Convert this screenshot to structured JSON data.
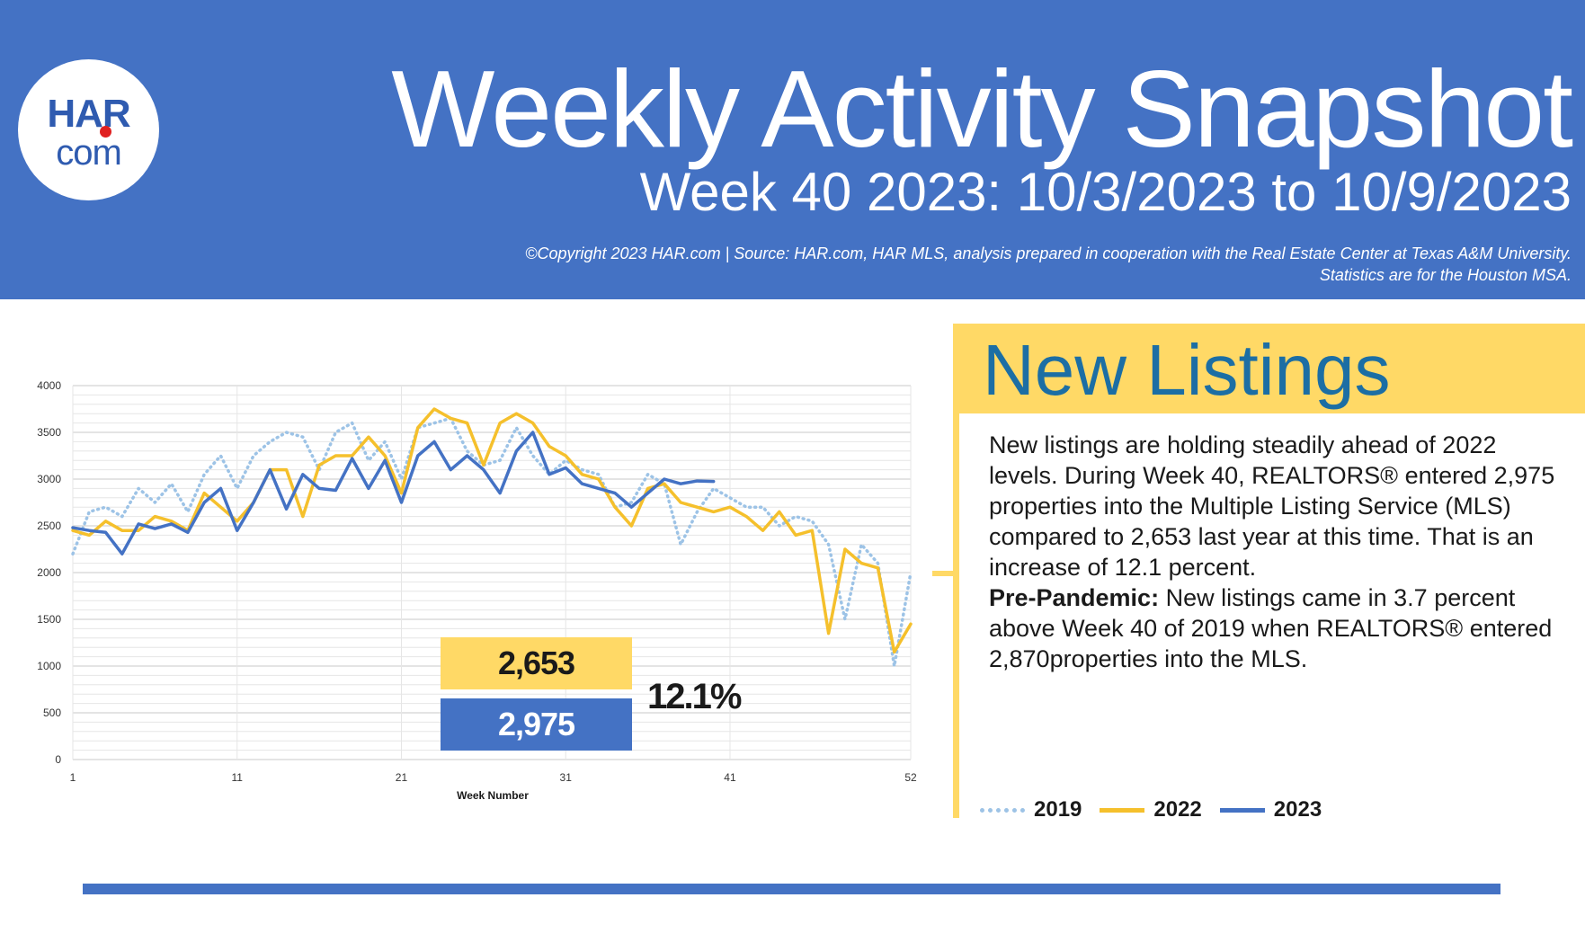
{
  "header": {
    "logo_top": "HAR",
    "logo_bottom": "com",
    "title": "Weekly Activity Snapshot",
    "subtitle": "Week 40 2023: 10/3/2023 to 10/9/2023",
    "source_line1": "©Copyright 2023 HAR.com  |  Source: HAR.com, HAR MLS, analysis prepared in cooperation with the Real Estate Center at Texas A&M University.",
    "source_line2": "Statistics are for the Houston MSA."
  },
  "panel": {
    "title": "New Listings",
    "paragraph1": "New listings are holding steadily ahead of 2022 levels. During Week 40, REALTORS® entered 2,975 properties into the Multiple Listing Service (MLS) compared to 2,653 last year at this time. That is an increase of 12.1 percent.",
    "paragraph2_label": "Pre-Pandemic:",
    "paragraph2_text": " New listings came in 3.7 percent above Week 40 of 2019 when REALTORS® entered 2,870properties into the MLS."
  },
  "callouts": {
    "value_2022": "2,653",
    "value_2023": "2,975",
    "percent": "12.1%"
  },
  "colors": {
    "header_blue": "#4472c4",
    "accent_yellow": "#ffd966",
    "title_teal": "#1c6ea4",
    "series_2019": "#9dc3e6",
    "series_2022": "#f5c02c",
    "series_2023": "#4472c4"
  },
  "chart_data": {
    "type": "line",
    "xlabel": "Week Number",
    "ylabel": "",
    "xlim": [
      1,
      52
    ],
    "ylim": [
      0,
      4000
    ],
    "x_ticks": [
      1,
      11,
      21,
      31,
      41,
      52
    ],
    "y_ticks": [
      0,
      500,
      1000,
      1500,
      2000,
      2500,
      3000,
      3500,
      4000
    ],
    "grid": true,
    "legend": "bottom",
    "series": [
      {
        "name": "2019",
        "style": "dotted",
        "x": [
          1,
          2,
          3,
          4,
          5,
          6,
          7,
          8,
          9,
          10,
          11,
          12,
          13,
          14,
          15,
          16,
          17,
          18,
          19,
          20,
          21,
          22,
          23,
          24,
          25,
          26,
          27,
          28,
          29,
          30,
          31,
          32,
          33,
          34,
          35,
          36,
          37,
          38,
          39,
          40,
          41,
          42,
          43,
          44,
          45,
          46,
          47,
          48,
          49,
          50,
          51,
          52
        ],
        "values": [
          2200,
          2650,
          2700,
          2600,
          2900,
          2750,
          2950,
          2650,
          3050,
          3250,
          2900,
          3250,
          3400,
          3500,
          3450,
          3100,
          3500,
          3600,
          3200,
          3400,
          3000,
          3550,
          3600,
          3650,
          3300,
          3150,
          3200,
          3550,
          3250,
          3050,
          3200,
          3100,
          3050,
          2700,
          2750,
          3050,
          2950,
          2300,
          2650,
          2900,
          2800,
          2700,
          2700,
          2500,
          2600,
          2550,
          2300,
          1500,
          2300,
          2100,
          1000,
          2000
        ]
      },
      {
        "name": "2022",
        "style": "solid",
        "x": [
          1,
          2,
          3,
          4,
          5,
          6,
          7,
          8,
          9,
          10,
          11,
          12,
          13,
          14,
          15,
          16,
          17,
          18,
          19,
          20,
          21,
          22,
          23,
          24,
          25,
          26,
          27,
          28,
          29,
          30,
          31,
          32,
          33,
          34,
          35,
          36,
          37,
          38,
          39,
          40,
          41,
          42,
          43,
          44,
          45,
          46,
          47,
          48,
          49,
          50,
          51,
          52
        ],
        "values": [
          2450,
          2400,
          2550,
          2450,
          2450,
          2600,
          2550,
          2450,
          2850,
          2700,
          2550,
          2750,
          3100,
          3100,
          2600,
          3150,
          3250,
          3250,
          3450,
          3250,
          2850,
          3550,
          3750,
          3650,
          3600,
          3150,
          3600,
          3700,
          3600,
          3350,
          3250,
          3050,
          3000,
          2700,
          2500,
          2900,
          2950,
          2750,
          2700,
          2650,
          2700,
          2600,
          2450,
          2650,
          2400,
          2450,
          1350,
          2250,
          2100,
          2050,
          1150,
          1450
        ]
      },
      {
        "name": "2023",
        "style": "solid",
        "x": [
          1,
          2,
          3,
          4,
          5,
          6,
          7,
          8,
          9,
          10,
          11,
          12,
          13,
          14,
          15,
          16,
          17,
          18,
          19,
          20,
          21,
          22,
          23,
          24,
          25,
          26,
          27,
          28,
          29,
          30,
          31,
          32,
          33,
          34,
          35,
          36,
          37,
          38,
          39,
          40
        ],
        "values": [
          2480,
          2450,
          2430,
          2200,
          2520,
          2470,
          2520,
          2430,
          2750,
          2900,
          2450,
          2750,
          3100,
          2680,
          3050,
          2900,
          2880,
          3220,
          2900,
          3200,
          2750,
          3250,
          3400,
          3100,
          3250,
          3100,
          2850,
          3300,
          3500,
          3050,
          3120,
          2950,
          2900,
          2850,
          2700,
          2850,
          3000,
          2950,
          2980,
          2975
        ]
      }
    ]
  }
}
